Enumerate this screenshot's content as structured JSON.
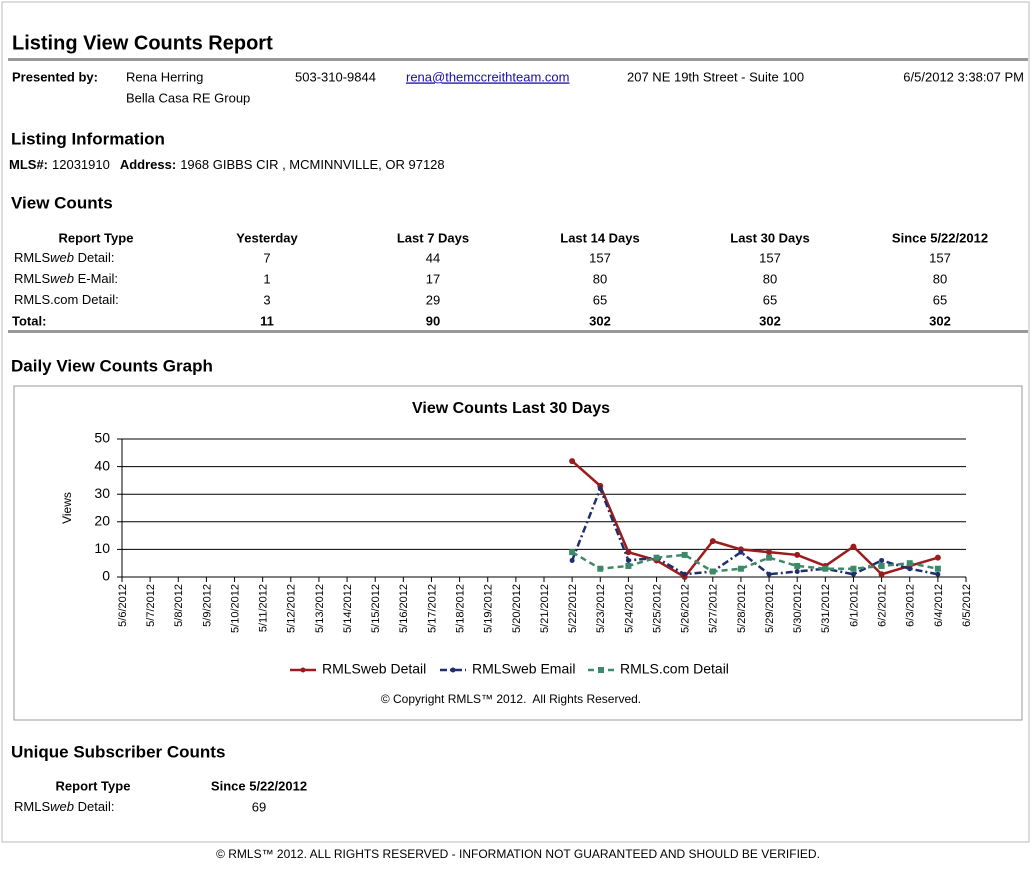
{
  "header": {
    "title": "Listing View Counts Report",
    "presented_by_label": "Presented by:",
    "agent_name": "Rena Herring",
    "agent_office": "Bella Casa RE Group",
    "phone": "503-310-9844",
    "email": "rena@themccreithteam.com",
    "office_address": "207 NE 19th Street - Suite 100",
    "generated": "6/5/2012 3:38:07 PM"
  },
  "listing": {
    "heading": "Listing Information",
    "mls_label": "MLS#:",
    "mls": "12031910",
    "address_label": "Address:",
    "address": "1968 GIBBS CIR , MCMINNVILLE, OR 97128"
  },
  "view_counts": {
    "heading": "View Counts",
    "columns": [
      "Report Type",
      "Yesterday",
      "Last 7 Days",
      "Last 14 Days",
      "Last 30 Days",
      "Since 5/22/2012"
    ],
    "rows": [
      {
        "label": [
          "RMLS",
          "web",
          " Detail:"
        ],
        "cells": [
          7,
          44,
          157,
          157,
          157
        ]
      },
      {
        "label": [
          "RMLS",
          "web",
          " E-Mail:"
        ],
        "cells": [
          1,
          17,
          80,
          80,
          80
        ]
      },
      {
        "label": [
          "RMLS.com Detail:"
        ],
        "cells": [
          3,
          29,
          65,
          65,
          65
        ]
      }
    ],
    "total": {
      "label": "Total:",
      "cells": [
        11,
        90,
        302,
        302,
        302
      ]
    }
  },
  "graph": {
    "heading": "Daily View Counts Graph"
  },
  "chart_data": {
    "type": "line",
    "title": "View Counts Last 30 Days",
    "y_label": "Views",
    "copyright": "© Copyright RMLS™ 2012.  All Rights Reserved.",
    "categories": [
      "5/6/2012",
      "5/7/2012",
      "5/8/2012",
      "5/9/2012",
      "5/10/2012",
      "5/11/2012",
      "5/12/2012",
      "5/13/2012",
      "5/14/2012",
      "5/15/2012",
      "5/16/2012",
      "5/17/2012",
      "5/18/2012",
      "5/19/2012",
      "5/20/2012",
      "5/21/2012",
      "5/22/2012",
      "5/23/2012",
      "5/24/2012",
      "5/25/2012",
      "5/26/2012",
      "5/27/2012",
      "5/28/2012",
      "5/29/2012",
      "5/30/2012",
      "5/31/2012",
      "6/1/2012",
      "6/2/2012",
      "6/3/2012",
      "6/4/2012",
      "6/5/2012"
    ],
    "ylim": [
      0,
      50
    ],
    "yticks": [
      0,
      10,
      20,
      30,
      40,
      50
    ],
    "grid": true,
    "legend": "bottom",
    "series": [
      {
        "name": "RMLSweb Detail",
        "color": "#9b1c1c",
        "dash": "solid",
        "marker": "circle",
        "values": [
          null,
          null,
          null,
          null,
          null,
          null,
          null,
          null,
          null,
          null,
          null,
          null,
          null,
          null,
          null,
          null,
          42,
          33,
          9,
          6,
          0,
          13,
          10,
          9,
          8,
          4,
          11,
          1,
          4,
          7,
          null
        ]
      },
      {
        "name": "RMLSweb Email",
        "color": "#1f2f6b",
        "dash": "dashdot",
        "marker": "circle",
        "values": [
          null,
          null,
          null,
          null,
          null,
          null,
          null,
          null,
          null,
          null,
          null,
          null,
          null,
          null,
          null,
          null,
          6,
          32,
          6,
          7,
          1,
          2,
          9,
          1,
          2,
          3,
          1,
          6,
          3,
          1,
          null
        ]
      },
      {
        "name": "RMLS.com Detail",
        "color": "#3d8a6b",
        "dash": "dashed",
        "marker": "square",
        "values": [
          null,
          null,
          null,
          null,
          null,
          null,
          null,
          null,
          null,
          null,
          null,
          null,
          null,
          null,
          null,
          null,
          9,
          3,
          4,
          7,
          8,
          2,
          3,
          7,
          4,
          3,
          3,
          4,
          5,
          3,
          null
        ]
      }
    ]
  },
  "unique_subscribers": {
    "heading": "Unique Subscriber Counts",
    "columns": [
      "Report Type",
      "Since 5/22/2012"
    ],
    "rows": [
      {
        "label": [
          "RMLS",
          "web",
          " Detail:"
        ],
        "cells": [
          69
        ]
      }
    ]
  },
  "footer": "© RMLS™ 2012. ALL RIGHTS RESERVED - INFORMATION NOT GUARANTEED AND SHOULD BE VERIFIED."
}
